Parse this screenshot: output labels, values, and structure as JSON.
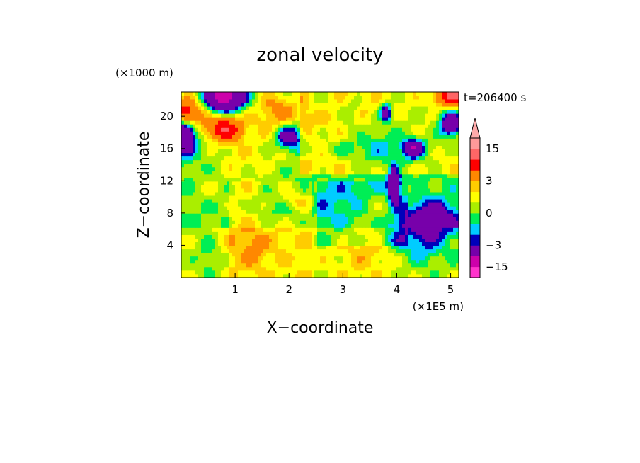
{
  "chart_data": {
    "type": "heatmap",
    "title": "zonal velocity",
    "xlabel": "X−coordinate",
    "ylabel": "Z−coordinate",
    "x_unit": "(×1E5 m)",
    "y_unit": "(×1000 m)",
    "time_label": "t=206400 s",
    "xlim": [
      0,
      5.15
    ],
    "ylim": [
      0,
      23
    ],
    "x_ticks": [
      1,
      2,
      3,
      4,
      5
    ],
    "x_tick_labels": [
      "1",
      "2",
      "3",
      "4",
      "5"
    ],
    "y_ticks": [
      4,
      8,
      12,
      16,
      20
    ],
    "y_tick_labels": [
      "4",
      "8",
      "12",
      "16",
      "20"
    ],
    "colorbar": {
      "levels": [
        -18,
        -15,
        -9,
        -3,
        -2,
        -1,
        0,
        1,
        2,
        3,
        6,
        9,
        15,
        18
      ],
      "colors": [
        "#ff33cc",
        "#cc00aa",
        "#7700aa",
        "#0000bb",
        "#00ccff",
        "#00ee55",
        "#aaee00",
        "#ffff00",
        "#ffcc00",
        "#ff8800",
        "#ff0000",
        "#ff6666",
        "#ff9999"
      ],
      "extend_top_color": "#ffaaaa",
      "tick_values": [
        15,
        3,
        0,
        -3,
        -15
      ],
      "tick_labels": [
        "15",
        "3",
        "0",
        "−3",
        "−15"
      ]
    }
  }
}
